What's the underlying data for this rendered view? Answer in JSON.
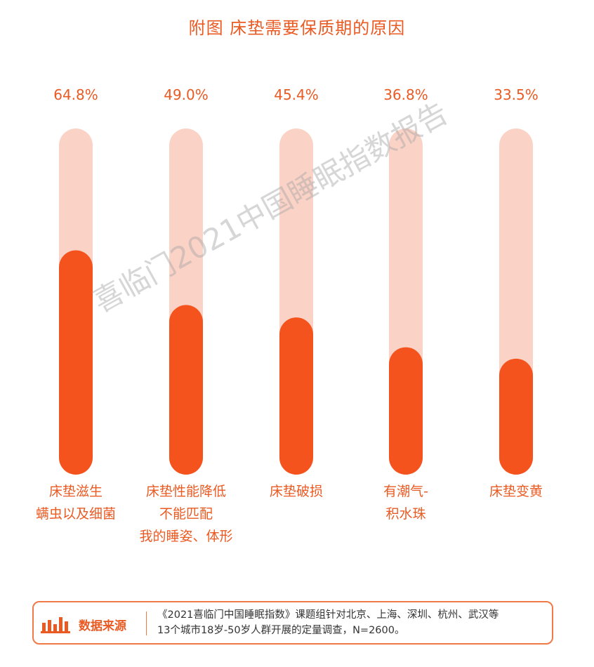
{
  "chart_data": {
    "type": "bar",
    "title": "附图 床垫需要保质期的原因",
    "categories": [
      [
        "床垫滋生",
        "螨虫以及细菌"
      ],
      [
        "床垫性能降低",
        "不能匹配",
        "我的睡姿、体形"
      ],
      [
        "床垫破损"
      ],
      [
        "有潮气-",
        "积水珠"
      ],
      [
        "床垫变黄"
      ]
    ],
    "values": [
      64.8,
      49.0,
      45.4,
      36.8,
      33.5
    ],
    "value_labels": [
      "64.8%",
      "49.0%",
      "45.4%",
      "36.8%",
      "33.5%"
    ],
    "ylim": [
      0,
      100
    ],
    "orientation": "vertical",
    "colors": {
      "fill": "#f4531d",
      "track": "#fbd3c6"
    }
  },
  "watermark": "喜临门2021中国睡眠指数报告",
  "source": {
    "title": "数据来源",
    "lines": [
      "《2021喜临门中国睡眠指数》课题组针对北京、上海、深圳、杭州、武汉等",
      "13个城市18岁-50岁人群开展的定量调查，N=2600。"
    ]
  }
}
